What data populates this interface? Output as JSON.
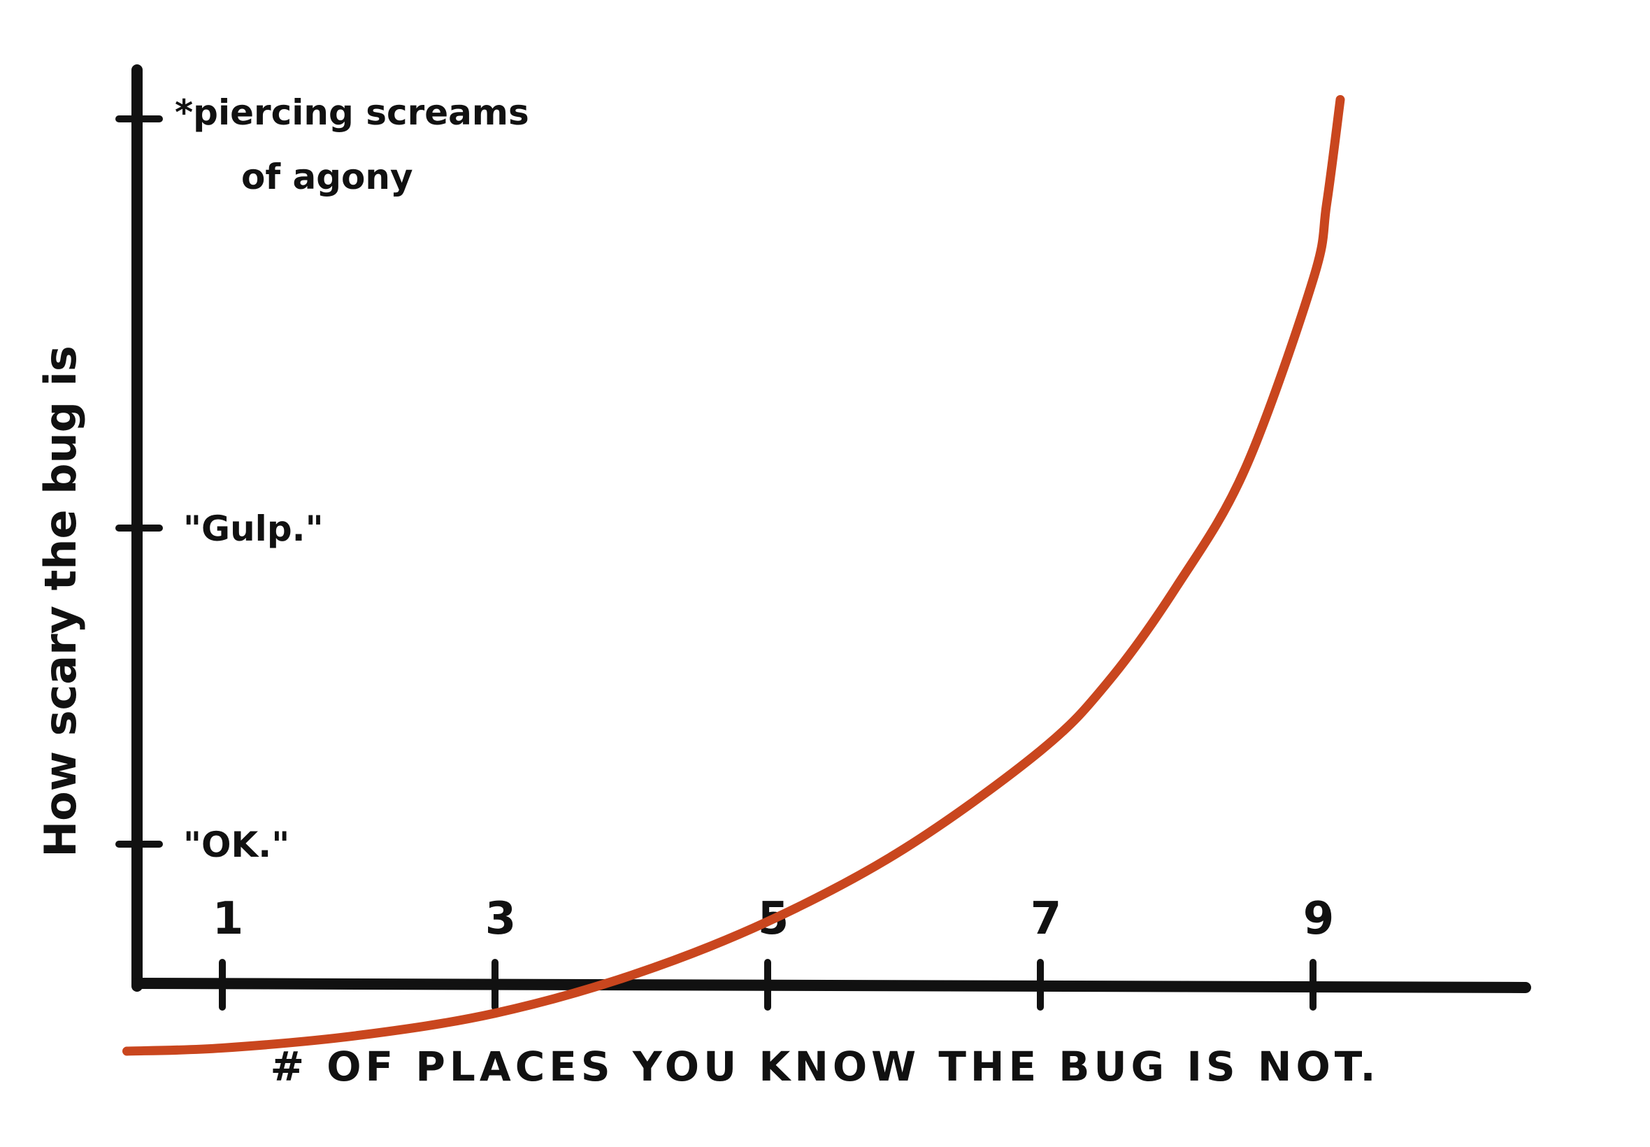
{
  "chart_data": {
    "type": "line",
    "title": "",
    "xlabel": "# OF PLACES YOU KNOW THE BUG IS NOT.",
    "ylabel": "How scary the bug is",
    "x_ticks": [
      "1",
      "3",
      "5",
      "7",
      "9"
    ],
    "y_ticks": [
      {
        "value": 1,
        "label": "\"OK.\""
      },
      {
        "value": 2,
        "label": "\"Gulp.\""
      },
      {
        "value": 3,
        "label": "*piercing screams of agony"
      }
    ],
    "xlim": [
      0.4,
      10.0
    ],
    "ylim": [
      0.4,
      3.2
    ],
    "grid": false,
    "legend": "none",
    "series": [
      {
        "color": "#c9461e",
        "x": [
          0.3,
          1.0,
          2.0,
          3.0,
          4.0,
          5.0,
          6.0,
          7.0,
          7.5,
          8.0,
          8.5,
          9.0,
          9.1,
          9.2
        ],
        "y": [
          0.27,
          0.28,
          0.32,
          0.39,
          0.51,
          0.68,
          0.91,
          1.22,
          1.44,
          1.74,
          2.11,
          2.71,
          2.95,
          3.28
        ]
      }
    ]
  }
}
